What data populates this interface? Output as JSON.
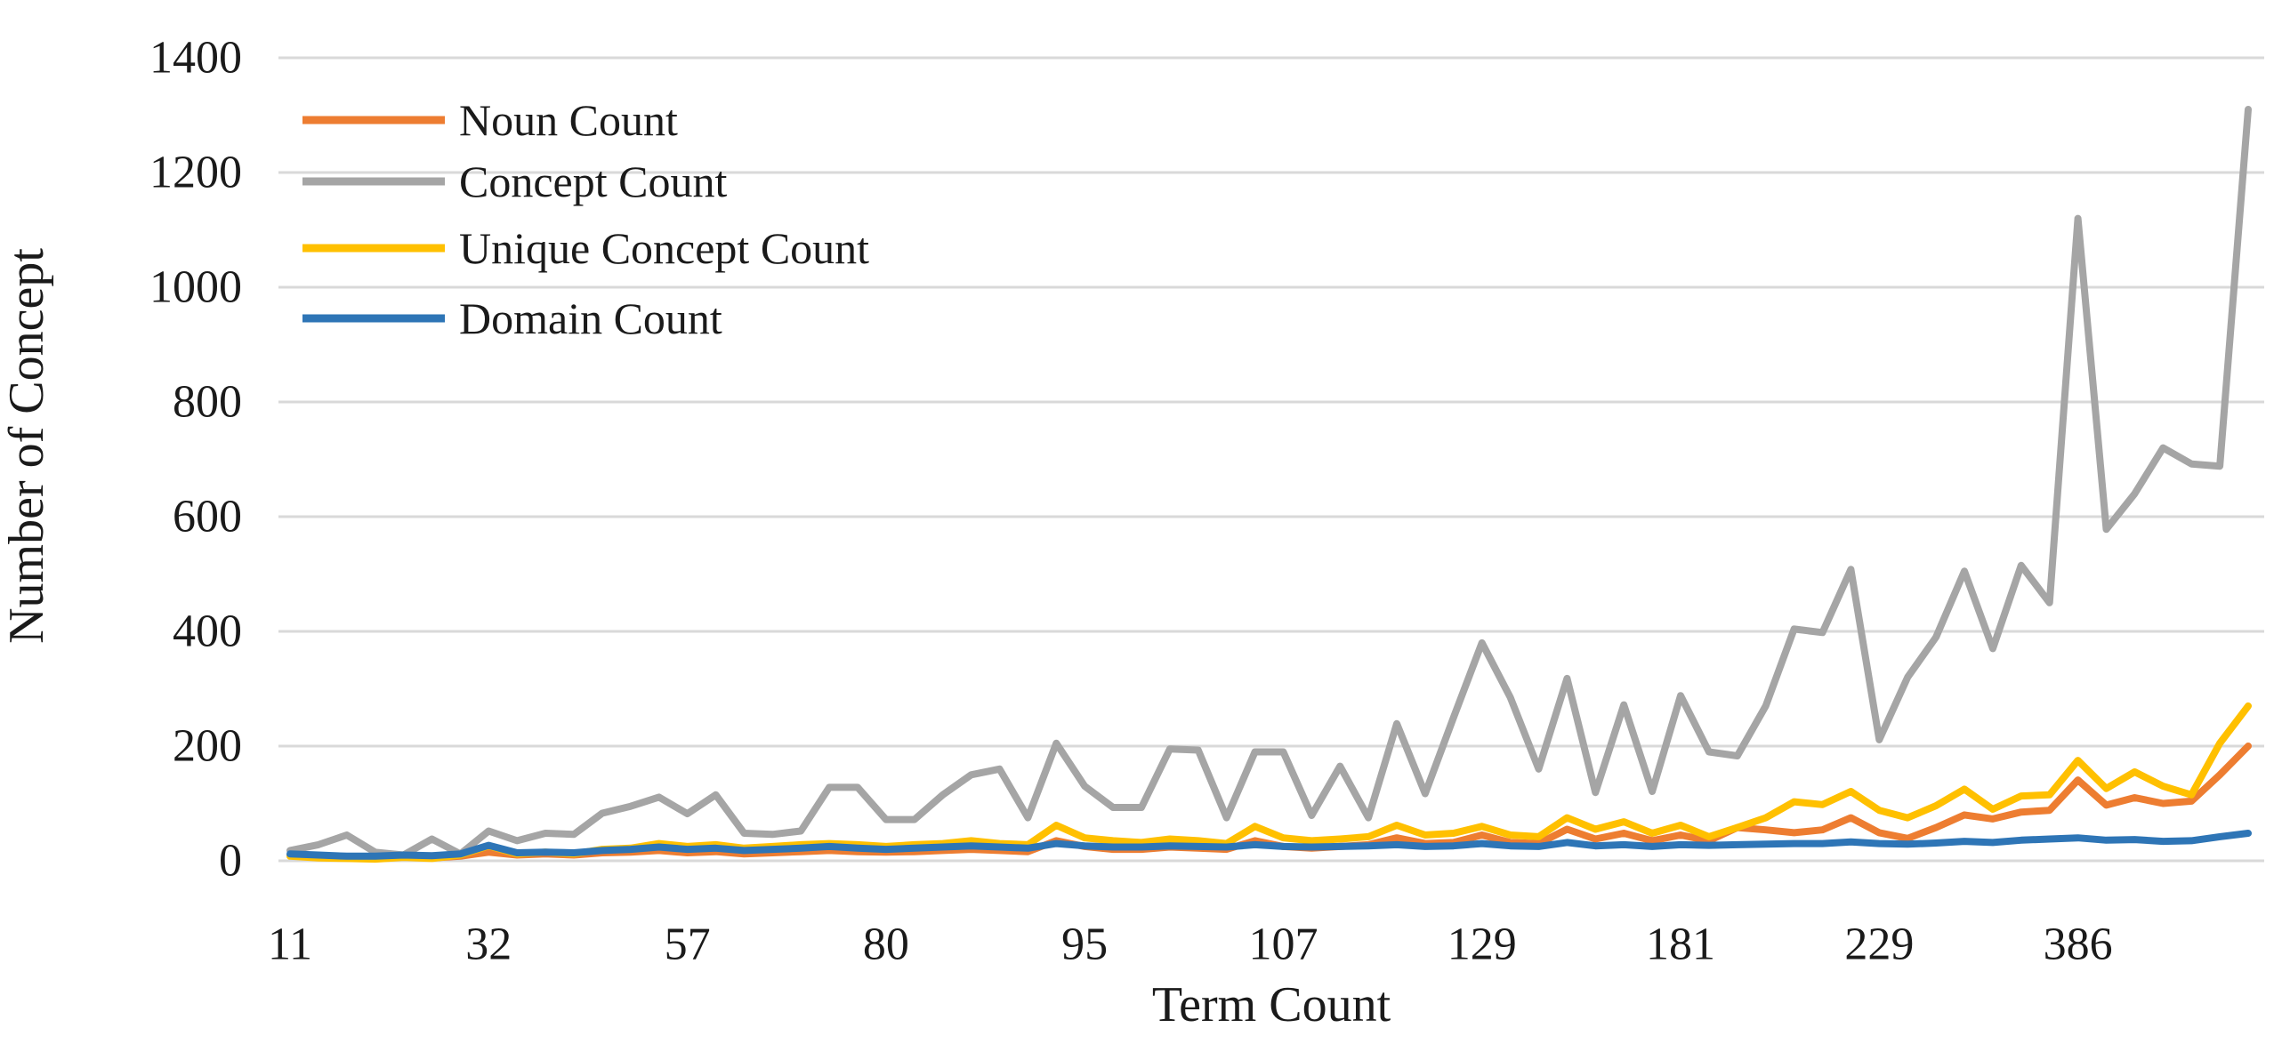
{
  "figure": {
    "background": "#FFFFFF",
    "gridline_color": "#D9D9D9",
    "text_color": "#1a1a1a"
  },
  "chart_data": {
    "type": "line",
    "title": "",
    "xlabel": "Term Count",
    "ylabel": "Number of Concept",
    "ylim": [
      0,
      1400
    ],
    "y_ticks": [
      0,
      200,
      400,
      600,
      800,
      1000,
      1200,
      1400
    ],
    "grid": true,
    "legend_position": "top-left",
    "n_points": 70,
    "x_tick_indices": [
      0,
      7,
      14,
      21,
      28,
      35,
      42,
      49,
      56,
      63
    ],
    "x_tick_labels": [
      "11",
      "32",
      "57",
      "80",
      "95",
      "107",
      "129",
      "181",
      "229",
      "386"
    ],
    "series": [
      {
        "name": "Noun Count",
        "color": "#ED7D31",
        "values": [
          10,
          6,
          5,
          4,
          8,
          5,
          8,
          15,
          10,
          12,
          10,
          14,
          15,
          18,
          14,
          16,
          12,
          14,
          16,
          18,
          16,
          15,
          16,
          18,
          20,
          18,
          16,
          35,
          25,
          20,
          20,
          24,
          22,
          20,
          35,
          25,
          22,
          25,
          28,
          40,
          30,
          32,
          45,
          32,
          30,
          55,
          38,
          48,
          35,
          45,
          35,
          58,
          54,
          49,
          54,
          75,
          49,
          39,
          58,
          80,
          73,
          85,
          88,
          141,
          97,
          110,
          100,
          104,
          150,
          200
        ]
      },
      {
        "name": "Concept Count",
        "color": "#A5A5A5",
        "values": [
          18,
          28,
          45,
          15,
          10,
          38,
          12,
          52,
          35,
          48,
          46,
          83,
          95,
          111,
          82,
          115,
          48,
          46,
          52,
          128,
          128,
          72,
          72,
          115,
          150,
          160,
          75,
          205,
          130,
          93,
          93,
          195,
          193,
          75,
          190,
          190,
          79,
          165,
          75,
          239,
          117,
          250,
          380,
          285,
          160,
          318,
          119,
          272,
          121,
          288,
          190,
          183,
          270,
          404,
          398,
          508,
          211,
          320,
          390,
          505,
          370,
          515,
          450,
          1120,
          578,
          640,
          720,
          692,
          688,
          1310
        ]
      },
      {
        "name": "Unique Concept Count",
        "color": "#FFC000",
        "values": [
          8,
          5,
          4,
          3,
          6,
          4,
          10,
          26,
          12,
          15,
          12,
          20,
          22,
          30,
          25,
          28,
          22,
          25,
          28,
          30,
          28,
          25,
          28,
          30,
          35,
          30,
          28,
          62,
          40,
          35,
          32,
          38,
          35,
          30,
          60,
          40,
          35,
          38,
          42,
          62,
          45,
          48,
          60,
          45,
          42,
          75,
          55,
          68,
          48,
          62,
          42,
          58,
          75,
          103,
          98,
          121,
          88,
          75,
          96,
          125,
          90,
          113,
          115,
          175,
          126,
          155,
          130,
          115,
          205,
          270
        ]
      },
      {
        "name": "Domain Count",
        "color": "#2E75B6",
        "values": [
          12,
          10,
          8,
          8,
          10,
          9,
          12,
          27,
          14,
          15,
          14,
          18,
          20,
          24,
          20,
          22,
          18,
          20,
          22,
          25,
          22,
          20,
          22,
          24,
          26,
          24,
          22,
          30,
          26,
          24,
          24,
          26,
          25,
          24,
          28,
          25,
          24,
          25,
          26,
          28,
          25,
          26,
          30,
          26,
          25,
          32,
          26,
          28,
          25,
          28,
          27,
          28,
          29,
          30,
          30,
          33,
          30,
          29,
          31,
          34,
          32,
          36,
          38,
          40,
          36,
          37,
          34,
          35,
          42,
          48
        ]
      }
    ]
  }
}
